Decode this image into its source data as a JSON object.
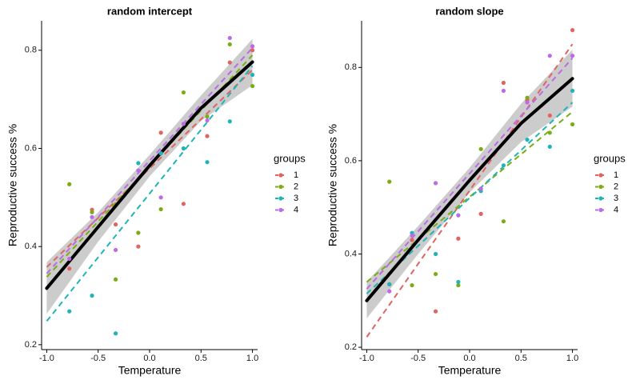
{
  "chart_data": [
    {
      "type": "scatter",
      "title": "random intercept",
      "xlabel": "Temperature",
      "ylabel": "Reproductive success %",
      "xlim": [
        -1.05,
        1.05
      ],
      "ylim": [
        0.19,
        0.86
      ],
      "xticks": [
        -1.0,
        -0.5,
        0.0,
        0.5,
        1.0
      ],
      "xticklabels": [
        "-1.0",
        "-0.5",
        "0.0",
        "0.5",
        "1.0"
      ],
      "yticks": [
        0.2,
        0.4,
        0.6,
        0.8
      ],
      "yticklabels": [
        "0.2",
        "0.4",
        "0.6",
        "0.8"
      ],
      "grid": false,
      "legend_title": "groups",
      "legend_position": "right",
      "series": [
        {
          "name": "1",
          "color": "#e0645f",
          "points": [
            [
              -0.78,
              0.355
            ],
            [
              -0.56,
              0.475
            ],
            [
              -0.33,
              0.445
            ],
            [
              -0.11,
              0.4
            ],
            [
              0.11,
              0.632
            ],
            [
              0.33,
              0.487
            ],
            [
              0.56,
              0.625
            ],
            [
              0.78,
              0.775
            ],
            [
              1.0,
              0.8
            ]
          ],
          "fit": [
            [
              -1.0,
              0.358
            ],
            [
              1.0,
              0.76
            ]
          ]
        },
        {
          "name": "2",
          "color": "#7aad12",
          "points": [
            [
              -0.78,
              0.527
            ],
            [
              -0.56,
              0.47
            ],
            [
              -0.33,
              0.333
            ],
            [
              -0.11,
              0.428
            ],
            [
              0.11,
              0.476
            ],
            [
              0.33,
              0.714
            ],
            [
              0.56,
              0.665
            ],
            [
              0.78,
              0.812
            ],
            [
              1.0,
              0.727
            ]
          ],
          "fit": [
            [
              -1.0,
              0.338
            ],
            [
              1.0,
              0.79
            ]
          ]
        },
        {
          "name": "3",
          "color": "#1fb5b8",
          "points": [
            [
              -0.78,
              0.268
            ],
            [
              -0.56,
              0.3
            ],
            [
              -0.33,
              0.223
            ],
            [
              -0.11,
              0.57
            ],
            [
              0.11,
              0.59
            ],
            [
              0.33,
              0.6
            ],
            [
              0.56,
              0.572
            ],
            [
              0.78,
              0.655
            ],
            [
              1.0,
              0.75
            ]
          ],
          "fit": [
            [
              -1.0,
              0.248
            ],
            [
              1.0,
              0.768
            ]
          ]
        },
        {
          "name": "4",
          "color": "#bd6ae6",
          "points": [
            [
              -0.78,
              0.375
            ],
            [
              -0.56,
              0.46
            ],
            [
              -0.33,
              0.393
            ],
            [
              -0.11,
              0.555
            ],
            [
              0.11,
              0.5
            ],
            [
              0.33,
              0.65
            ],
            [
              0.56,
              0.657
            ],
            [
              0.78,
              0.825
            ],
            [
              1.0,
              0.808
            ]
          ],
          "fit": [
            [
              -1.0,
              0.345
            ],
            [
              1.0,
              0.805
            ]
          ]
        }
      ],
      "overall_fit": [
        [
          -1.0,
          0.315
        ],
        [
          -0.5,
          0.44
        ],
        [
          0.0,
          0.565
        ],
        [
          0.5,
          0.682
        ],
        [
          1.0,
          0.776
        ]
      ],
      "ci_upper": [
        [
          -1.0,
          0.368
        ],
        [
          -0.5,
          0.47
        ],
        [
          0.0,
          0.587
        ],
        [
          0.5,
          0.708
        ],
        [
          1.0,
          0.823
        ]
      ],
      "ci_lower": [
        [
          -1.0,
          0.263
        ],
        [
          -0.5,
          0.41
        ],
        [
          0.0,
          0.543
        ],
        [
          0.5,
          0.656
        ],
        [
          1.0,
          0.729
        ]
      ]
    },
    {
      "type": "scatter",
      "title": "random slope",
      "xlabel": "Temperature",
      "ylabel": "Reproductive success %",
      "xlim": [
        -1.05,
        1.05
      ],
      "ylim": [
        0.195,
        0.9
      ],
      "xticks": [
        -1.0,
        -0.5,
        0.0,
        0.5,
        1.0
      ],
      "xticklabels": [
        "-1.0",
        "-0.5",
        "0.0",
        "0.5",
        "1.0"
      ],
      "yticks": [
        0.2,
        0.4,
        0.6,
        0.8
      ],
      "yticklabels": [
        "0.2",
        "0.4",
        "0.6",
        "0.8"
      ],
      "grid": false,
      "legend_title": "groups",
      "legend_position": "right",
      "series": [
        {
          "name": "1",
          "color": "#e0645f",
          "points": [
            [
              -0.78,
              0.335
            ],
            [
              -0.56,
              0.43
            ],
            [
              -0.33,
              0.277
            ],
            [
              -0.11,
              0.433
            ],
            [
              0.11,
              0.486
            ],
            [
              0.33,
              0.767
            ],
            [
              0.56,
              0.73
            ],
            [
              0.78,
              0.697
            ],
            [
              1.0,
              0.88
            ]
          ],
          "fit": [
            [
              -1.0,
              0.222
            ],
            [
              1.0,
              0.85
            ]
          ]
        },
        {
          "name": "2",
          "color": "#7aad12",
          "points": [
            [
              -0.78,
              0.555
            ],
            [
              -0.56,
              0.333
            ],
            [
              -0.33,
              0.357
            ],
            [
              -0.11,
              0.333
            ],
            [
              0.11,
              0.625
            ],
            [
              0.33,
              0.47
            ],
            [
              0.56,
              0.735
            ],
            [
              0.78,
              0.66
            ],
            [
              1.0,
              0.678
            ]
          ],
          "fit": [
            [
              -1.0,
              0.34
            ],
            [
              1.0,
              0.705
            ]
          ]
        },
        {
          "name": "3",
          "color": "#1fb5b8",
          "points": [
            [
              -0.78,
              0.335
            ],
            [
              -0.56,
              0.445
            ],
            [
              -0.33,
              0.4
            ],
            [
              -0.11,
              0.34
            ],
            [
              0.11,
              0.535
            ],
            [
              0.33,
              0.59
            ],
            [
              0.56,
              0.645
            ],
            [
              0.78,
              0.63
            ],
            [
              1.0,
              0.75
            ]
          ],
          "fit": [
            [
              -1.0,
              0.315
            ],
            [
              1.0,
              0.725
            ]
          ]
        },
        {
          "name": "4",
          "color": "#bd6ae6",
          "points": [
            [
              -0.78,
              0.32
            ],
            [
              -0.56,
              0.44
            ],
            [
              -0.33,
              0.552
            ],
            [
              -0.11,
              0.483
            ],
            [
              0.11,
              0.54
            ],
            [
              0.33,
              0.75
            ],
            [
              0.56,
              0.725
            ],
            [
              0.78,
              0.825
            ],
            [
              1.0,
              0.825
            ]
          ],
          "fit": [
            [
              -1.0,
              0.325
            ],
            [
              1.0,
              0.82
            ]
          ]
        }
      ],
      "overall_fit": [
        [
          -1.0,
          0.3
        ],
        [
          -0.5,
          0.43
        ],
        [
          0.0,
          0.558
        ],
        [
          0.5,
          0.68
        ],
        [
          1.0,
          0.776
        ]
      ],
      "ci_upper": [
        [
          -1.0,
          0.34
        ],
        [
          -0.5,
          0.46
        ],
        [
          0.0,
          0.585
        ],
        [
          0.5,
          0.722
        ],
        [
          1.0,
          0.838
        ]
      ],
      "ci_lower": [
        [
          -1.0,
          0.262
        ],
        [
          -0.5,
          0.4
        ],
        [
          0.0,
          0.532
        ],
        [
          0.5,
          0.64
        ],
        [
          1.0,
          0.716
        ]
      ]
    }
  ]
}
